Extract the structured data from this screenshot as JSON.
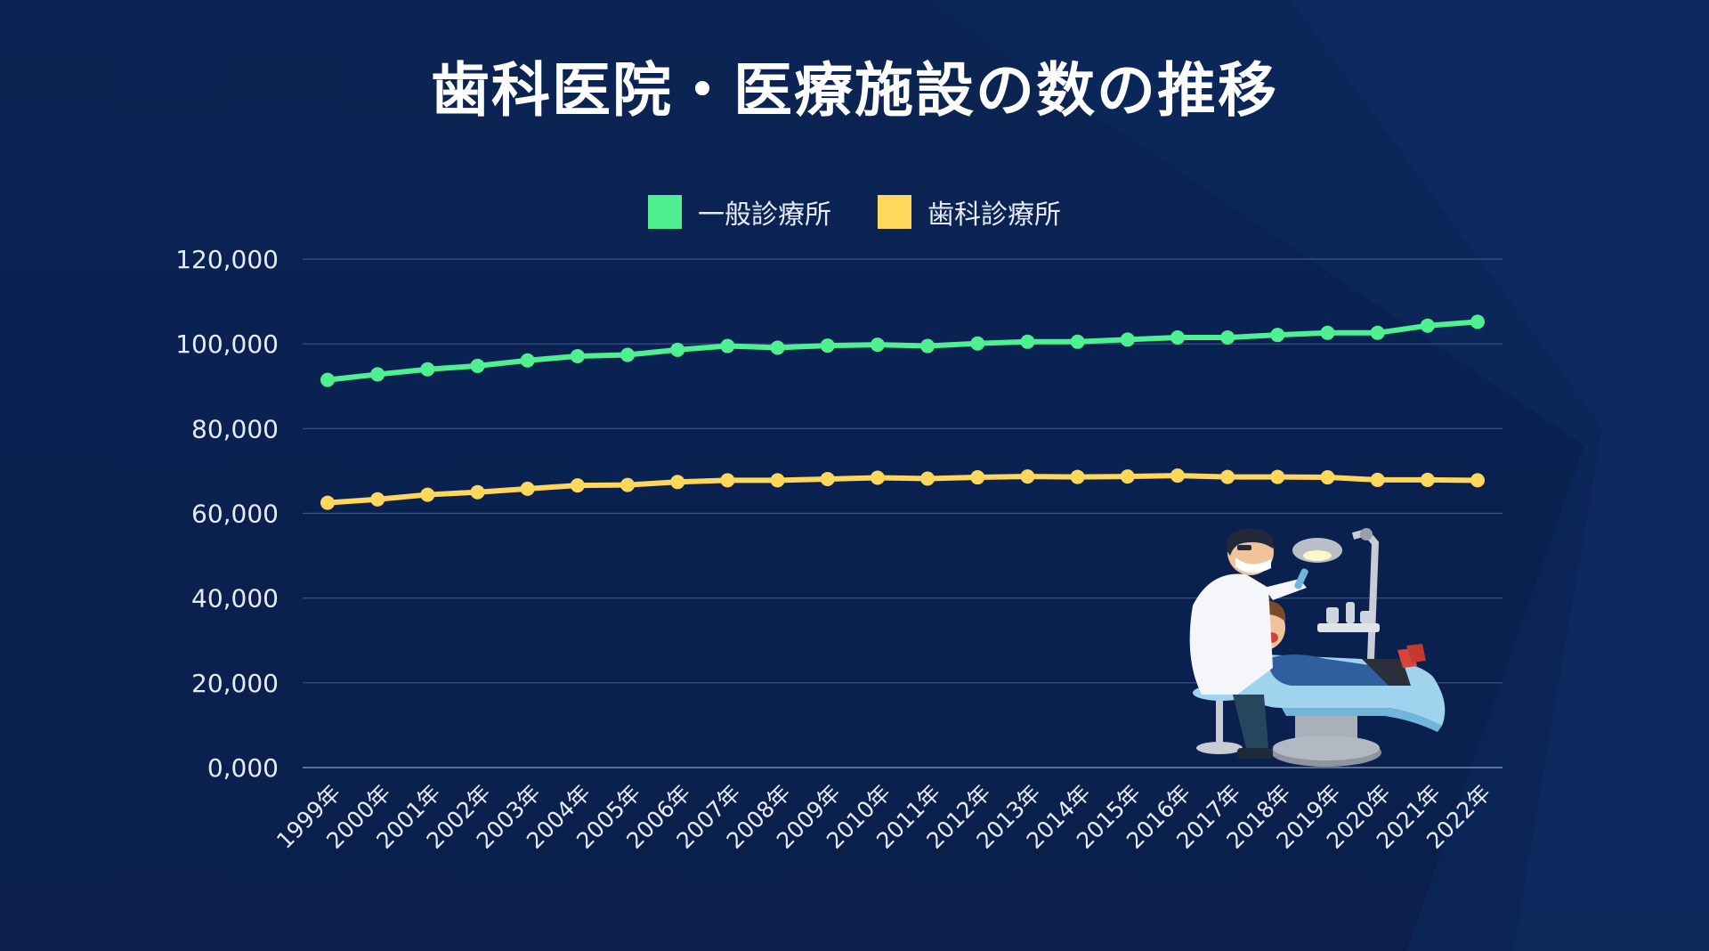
{
  "chart_data": {
    "type": "line",
    "title": "歯科医院・医療施設の数の推移",
    "xlabel": "",
    "ylabel": "",
    "categories": [
      "1999年",
      "2000年",
      "2001年",
      "2002年",
      "2003年",
      "2004年",
      "2005年",
      "2006年",
      "2007年",
      "2008年",
      "2009年",
      "2010年",
      "2011年",
      "2012年",
      "2013年",
      "2014年",
      "2015年",
      "2016年",
      "2017年",
      "2018年",
      "2019年",
      "2020年",
      "2021年",
      "2022年"
    ],
    "series": [
      {
        "name": "一般診療所",
        "color": "#4ff08f",
        "values": [
          91500,
          92800,
          94000,
          94800,
          96100,
          97100,
          97400,
          98600,
          99500,
          99100,
          99600,
          99800,
          99500,
          100100,
          100500,
          100500,
          101000,
          101500,
          101500,
          102100,
          102600,
          102600,
          104300,
          105200
        ]
      },
      {
        "name": "歯科診療所",
        "color": "#ffd75a",
        "values": [
          62500,
          63300,
          64400,
          65000,
          65800,
          66600,
          66700,
          67400,
          67800,
          67800,
          68100,
          68400,
          68200,
          68500,
          68700,
          68600,
          68700,
          68900,
          68600,
          68600,
          68500,
          67900,
          67900,
          67800
        ]
      }
    ],
    "ylim": [
      0,
      120000
    ],
    "yticks": [
      0,
      20000,
      40000,
      60000,
      80000,
      100000,
      120000
    ],
    "ytick_labels": [
      "0,000",
      "20,000",
      "40,000",
      "60,000",
      "80,000",
      "100,000",
      "120,000"
    ],
    "grid": true,
    "legend_position": "top-center"
  },
  "theme": {
    "background": "#0a2150",
    "gridline": "#3d5585",
    "text": "#e6ecf7"
  },
  "illustration": {
    "icon": "dentist-treating-patient-illustration"
  }
}
